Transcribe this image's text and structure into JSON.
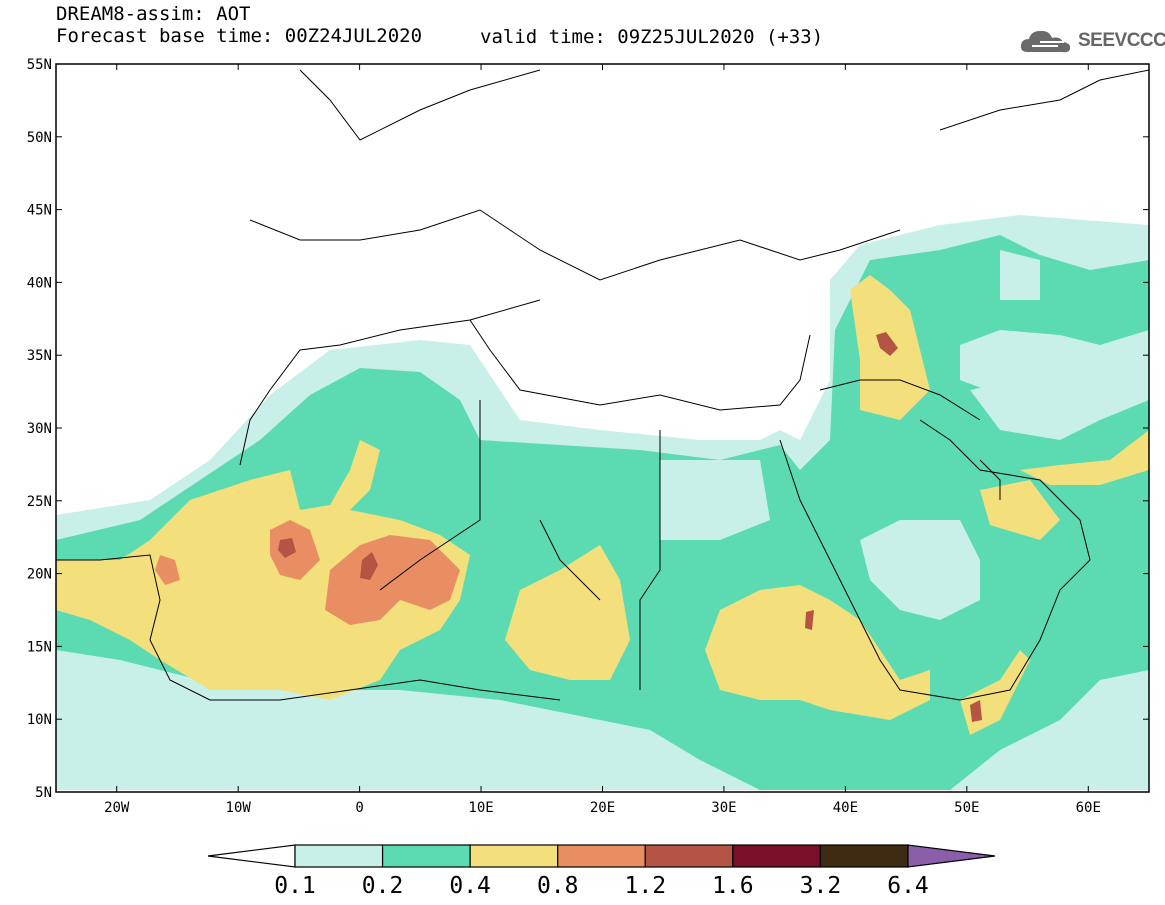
{
  "header": {
    "line1": "DREAM8-assim: AOT",
    "line2": "Forecast base time: 00Z24JUL2020",
    "valid": "valid time: 09Z25JUL2020 (+33)"
  },
  "logo": {
    "text": "SEEVCCC",
    "icon": "cloud-icon"
  },
  "axes": {
    "lat_ticks": [
      "5N",
      "10N",
      "15N",
      "20N",
      "25N",
      "30N",
      "35N",
      "40N",
      "45N",
      "50N",
      "55N"
    ],
    "lon_ticks": [
      "20W",
      "10W",
      "0",
      "10E",
      "20E",
      "30E",
      "40E",
      "50E",
      "60E"
    ],
    "lon_range": [
      -25,
      65
    ],
    "lat_range": [
      5,
      55
    ]
  },
  "colorbar": {
    "labels": [
      "0.1",
      "0.2",
      "0.4",
      "0.8",
      "1.2",
      "1.6",
      "3.2",
      "6.4"
    ],
    "colors": {
      "below": "#ffffff",
      "bins": [
        "#c8f0e8",
        "#5cdbb2",
        "#f3e07c",
        "#e98e62",
        "#b35444",
        "#7a0f2a",
        "#3f2a12"
      ],
      "above": "#8a5ea8"
    }
  },
  "map_layers": {
    "bins": [
      "0.1-0.2",
      "0.2-0.4",
      "0.4-0.8",
      "0.8-1.2",
      "1.2-1.6"
    ],
    "colors": [
      "#c8f0e8",
      "#5cdbb2",
      "#f3e07c",
      "#e98e62",
      "#b35444"
    ]
  }
}
